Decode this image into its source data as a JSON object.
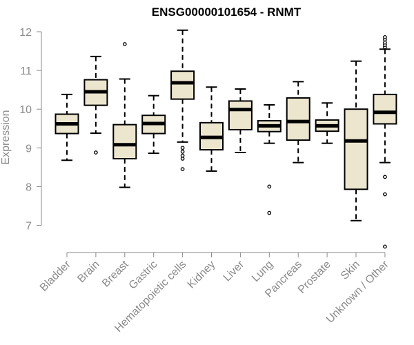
{
  "chart_data": {
    "type": "boxplot",
    "title": "ENSG00000101654 - RNMT",
    "xlabel": "",
    "ylabel": "Expression",
    "ylim": [
      6.2,
      12.4
    ],
    "yticks": [
      7,
      8,
      9,
      10,
      11,
      12
    ],
    "grid": false,
    "colors": {
      "box_fill": "#ede6cf",
      "box_stroke": "#000000",
      "axis": "#8a8a8a"
    },
    "categories": [
      "Bladder",
      "Brain",
      "Breast",
      "Gastric",
      "Hematopoietic cells",
      "Kidney",
      "Liver",
      "Lung",
      "Pancreas",
      "Prostate",
      "Skin",
      "Unknown / Other"
    ],
    "boxes": [
      {
        "category": "Bladder",
        "whisker_low": 8.68,
        "q1": 9.37,
        "median": 9.62,
        "q3": 9.87,
        "whisker_high": 10.38,
        "outliers": []
      },
      {
        "category": "Brain",
        "whisker_low": 9.38,
        "q1": 10.1,
        "median": 10.45,
        "q3": 10.76,
        "whisker_high": 11.36,
        "outliers": [
          8.88
        ]
      },
      {
        "category": "Breast",
        "whisker_low": 7.98,
        "q1": 8.72,
        "median": 9.08,
        "q3": 9.6,
        "whisker_high": 10.78,
        "outliers": [
          11.68
        ]
      },
      {
        "category": "Gastric",
        "whisker_low": 8.86,
        "q1": 9.37,
        "median": 9.63,
        "q3": 9.84,
        "whisker_high": 10.35,
        "outliers": []
      },
      {
        "category": "Hematopoietic cells",
        "whisker_low": 9.15,
        "q1": 10.26,
        "median": 10.68,
        "q3": 10.98,
        "whisker_high": 12.04,
        "outliers": [
          8.45,
          8.72,
          8.8,
          8.9,
          9.0
        ]
      },
      {
        "category": "Kidney",
        "whisker_low": 8.4,
        "q1": 8.95,
        "median": 9.27,
        "q3": 9.65,
        "whisker_high": 10.57,
        "outliers": []
      },
      {
        "category": "Liver",
        "whisker_low": 8.88,
        "q1": 9.47,
        "median": 9.99,
        "q3": 10.21,
        "whisker_high": 10.52,
        "outliers": []
      },
      {
        "category": "Lung",
        "whisker_low": 9.12,
        "q1": 9.42,
        "median": 9.57,
        "q3": 9.7,
        "whisker_high": 10.11,
        "outliers": [
          8.0,
          7.32
        ]
      },
      {
        "category": "Pancreas",
        "whisker_low": 8.62,
        "q1": 9.2,
        "median": 9.68,
        "q3": 10.29,
        "whisker_high": 10.71,
        "outliers": []
      },
      {
        "category": "Prostate",
        "whisker_low": 9.12,
        "q1": 9.43,
        "median": 9.57,
        "q3": 9.72,
        "whisker_high": 10.16,
        "outliers": []
      },
      {
        "category": "Skin",
        "whisker_low": 7.12,
        "q1": 7.93,
        "median": 9.18,
        "q3": 10.0,
        "whisker_high": 11.24,
        "outliers": []
      },
      {
        "category": "Unknown / Other",
        "whisker_low": 8.62,
        "q1": 9.62,
        "median": 9.92,
        "q3": 10.38,
        "whisker_high": 11.55,
        "outliers": [
          11.6,
          11.66,
          11.72,
          11.8,
          11.86,
          8.25,
          7.8,
          6.45
        ]
      }
    ]
  }
}
